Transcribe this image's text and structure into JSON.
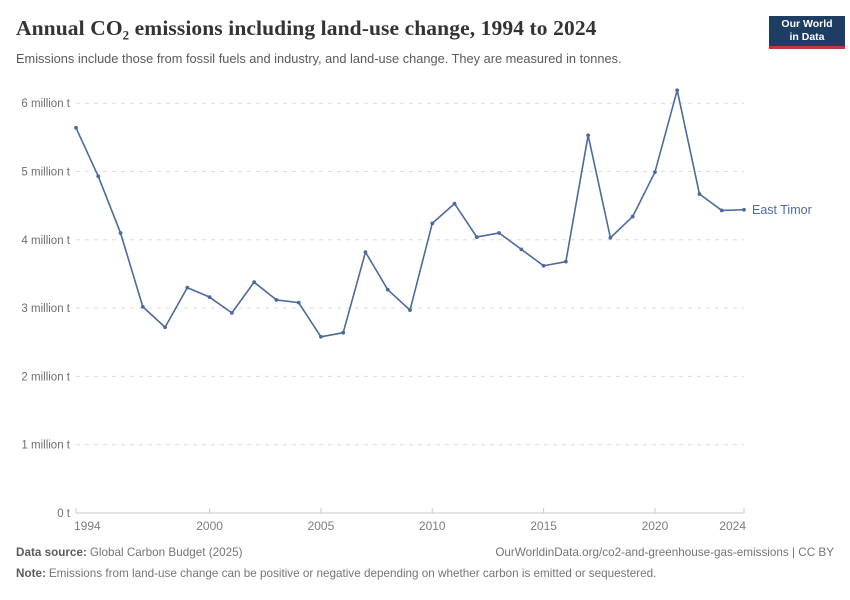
{
  "header": {
    "title": "Annual CO₂ emissions including land-use change, 1994 to 2024",
    "subtitle": "Emissions include those from fossil fuels and industry, and land-use change. They are measured in tonnes.",
    "logo": {
      "line1": "Our World",
      "line2": "in Data"
    }
  },
  "chart_data": {
    "type": "line",
    "title": "Annual CO₂ emissions including land-use change, 1994 to 2024",
    "entity": "East Timor",
    "unit": "tonnes",
    "x": [
      1994,
      1995,
      1996,
      1997,
      1998,
      1999,
      2000,
      2001,
      2002,
      2003,
      2004,
      2005,
      2006,
      2007,
      2008,
      2009,
      2010,
      2011,
      2012,
      2013,
      2014,
      2015,
      2016,
      2017,
      2018,
      2019,
      2020,
      2021,
      2022,
      2023,
      2024
    ],
    "values_million_t": [
      5.64,
      4.93,
      4.1,
      3.02,
      2.72,
      3.3,
      3.16,
      2.93,
      3.38,
      3.12,
      3.08,
      2.58,
      2.64,
      3.82,
      3.27,
      2.97,
      4.24,
      4.53,
      4.04,
      4.1,
      3.86,
      3.62,
      3.68,
      5.53,
      4.03,
      4.34,
      4.99,
      6.19,
      4.67,
      4.43,
      4.44
    ],
    "y_ticks": [
      {
        "v": 0,
        "label": "0 t"
      },
      {
        "v": 1,
        "label": "1 million t"
      },
      {
        "v": 2,
        "label": "2 million t"
      },
      {
        "v": 3,
        "label": "3 million t"
      },
      {
        "v": 4,
        "label": "4 million t"
      },
      {
        "v": 5,
        "label": "5 million t"
      },
      {
        "v": 6,
        "label": "6 million t"
      }
    ],
    "x_ticks": [
      1994,
      2000,
      2005,
      2010,
      2015,
      2020,
      2024
    ],
    "ylim_million_t": [
      0,
      6.37
    ],
    "grid": true,
    "legend": "entity-label-at-line-end",
    "line_color": "#4C6A9C",
    "grid_color": "#dcdcdc",
    "axis_color": "#c9c9c9",
    "y_label_color": "#6e6e6e",
    "x_label_color": "#7d7d7d"
  },
  "footer": {
    "source_label": "Data source:",
    "source_text": "Global Carbon Budget (2025)",
    "credit": "OurWorldinData.org/co2-and-greenhouse-gas-emissions | CC BY",
    "note_label": "Note:",
    "note_text": "Emissions from land-use change can be positive or negative depending on whether carbon is emitted or sequestered."
  }
}
